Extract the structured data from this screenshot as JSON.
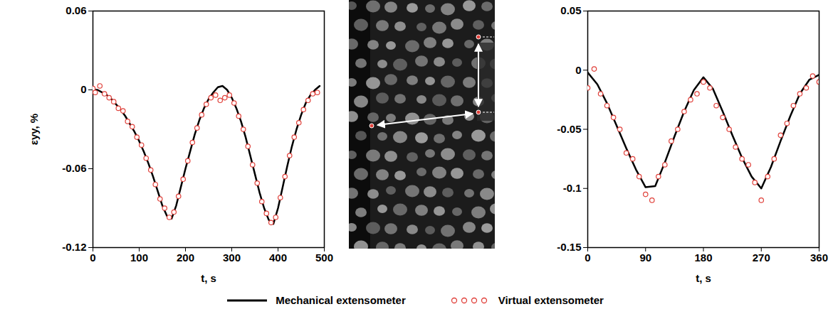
{
  "chart_data": [
    {
      "type": "line",
      "x_label": "t, s",
      "y_label": "εyy, %",
      "xlim": [
        0,
        500
      ],
      "xticks": [
        0,
        100,
        200,
        300,
        400,
        500
      ],
      "ylim": [
        -0.12,
        0.06
      ],
      "yticks": [
        -0.12,
        -0.06,
        0,
        0.06
      ],
      "legend": "bottom",
      "series": [
        {
          "name": "Mechanical extensometer",
          "type": "line",
          "color": "#000000",
          "line_style": "solid",
          "x": [
            0,
            10,
            20,
            30,
            40,
            50,
            60,
            70,
            80,
            90,
            100,
            110,
            120,
            130,
            140,
            150,
            160,
            170,
            180,
            190,
            200,
            210,
            220,
            230,
            240,
            250,
            260,
            270,
            280,
            290,
            300,
            310,
            320,
            330,
            340,
            350,
            360,
            370,
            380,
            390,
            400,
            410,
            420,
            430,
            440,
            450,
            460,
            470,
            480,
            490
          ],
          "values": [
            0,
            0,
            -0.002,
            -0.004,
            -0.007,
            -0.011,
            -0.015,
            -0.02,
            -0.026,
            -0.032,
            -0.039,
            -0.047,
            -0.056,
            -0.066,
            -0.077,
            -0.088,
            -0.096,
            -0.098,
            -0.088,
            -0.074,
            -0.06,
            -0.047,
            -0.034,
            -0.023,
            -0.014,
            -0.007,
            -0.002,
            0.002,
            0.003,
            0,
            -0.006,
            -0.014,
            -0.024,
            -0.036,
            -0.05,
            -0.064,
            -0.078,
            -0.09,
            -0.099,
            -0.102,
            -0.09,
            -0.074,
            -0.058,
            -0.043,
            -0.03,
            -0.019,
            -0.01,
            -0.004,
            0,
            0.003
          ]
        },
        {
          "name": "Virtual extensometer",
          "type": "scatter",
          "color": "#e0403a",
          "marker": "circle",
          "x": [
            0,
            5,
            15,
            25,
            35,
            45,
            55,
            65,
            75,
            85,
            95,
            105,
            115,
            125,
            135,
            145,
            155,
            165,
            175,
            185,
            195,
            205,
            215,
            225,
            235,
            245,
            255,
            265,
            275,
            285,
            295,
            305,
            315,
            325,
            335,
            345,
            355,
            365,
            375,
            385,
            395,
            405,
            415,
            425,
            435,
            445,
            455,
            465,
            475,
            485
          ],
          "values": [
            0.001,
            -0.002,
            0.003,
            -0.003,
            -0.006,
            -0.009,
            -0.014,
            -0.016,
            -0.024,
            -0.028,
            -0.036,
            -0.042,
            -0.052,
            -0.061,
            -0.072,
            -0.083,
            -0.09,
            -0.097,
            -0.093,
            -0.081,
            -0.068,
            -0.054,
            -0.04,
            -0.029,
            -0.019,
            -0.011,
            -0.006,
            -0.004,
            -0.008,
            -0.006,
            -0.004,
            -0.01,
            -0.02,
            -0.03,
            -0.043,
            -0.057,
            -0.071,
            -0.085,
            -0.094,
            -0.101,
            -0.097,
            -0.082,
            -0.066,
            -0.05,
            -0.036,
            -0.025,
            -0.015,
            -0.008,
            -0.003,
            -0.002
          ]
        }
      ]
    },
    {
      "type": "line",
      "x_label": "t, s",
      "xlim": [
        0,
        360
      ],
      "xticks": [
        0,
        90,
        180,
        270,
        360
      ],
      "ylim": [
        -0.15,
        0.05
      ],
      "yticks": [
        -0.15,
        -0.1,
        -0.05,
        0,
        0.05
      ],
      "series": [
        {
          "name": "Mechanical extensometer",
          "type": "line",
          "color": "#000000",
          "line_style": "solid",
          "x": [
            0,
            15,
            30,
            45,
            60,
            75,
            90,
            105,
            120,
            135,
            150,
            165,
            180,
            195,
            210,
            225,
            240,
            255,
            270,
            285,
            300,
            315,
            330,
            345,
            360
          ],
          "values": [
            -0.002,
            -0.012,
            -0.028,
            -0.047,
            -0.066,
            -0.084,
            -0.099,
            -0.098,
            -0.078,
            -0.056,
            -0.035,
            -0.017,
            -0.006,
            -0.016,
            -0.035,
            -0.055,
            -0.074,
            -0.09,
            -0.1,
            -0.082,
            -0.06,
            -0.039,
            -0.02,
            -0.008,
            -0.004
          ]
        },
        {
          "name": "Virtual extensometer",
          "type": "scatter",
          "color": "#e0403a",
          "marker": "circle",
          "x": [
            0,
            10,
            20,
            30,
            40,
            50,
            60,
            70,
            80,
            90,
            100,
            110,
            120,
            130,
            140,
            150,
            160,
            170,
            180,
            190,
            200,
            210,
            220,
            230,
            240,
            250,
            260,
            270,
            280,
            290,
            300,
            310,
            320,
            330,
            340,
            350,
            360
          ],
          "values": [
            -0.015,
            0.001,
            -0.02,
            -0.03,
            -0.04,
            -0.05,
            -0.07,
            -0.075,
            -0.09,
            -0.105,
            -0.11,
            -0.09,
            -0.08,
            -0.06,
            -0.05,
            -0.035,
            -0.025,
            -0.02,
            -0.01,
            -0.015,
            -0.03,
            -0.04,
            -0.05,
            -0.065,
            -0.075,
            -0.08,
            -0.095,
            -0.11,
            -0.09,
            -0.075,
            -0.055,
            -0.045,
            -0.03,
            -0.02,
            -0.015,
            -0.005,
            -0.01
          ]
        }
      ]
    }
  ]
}
